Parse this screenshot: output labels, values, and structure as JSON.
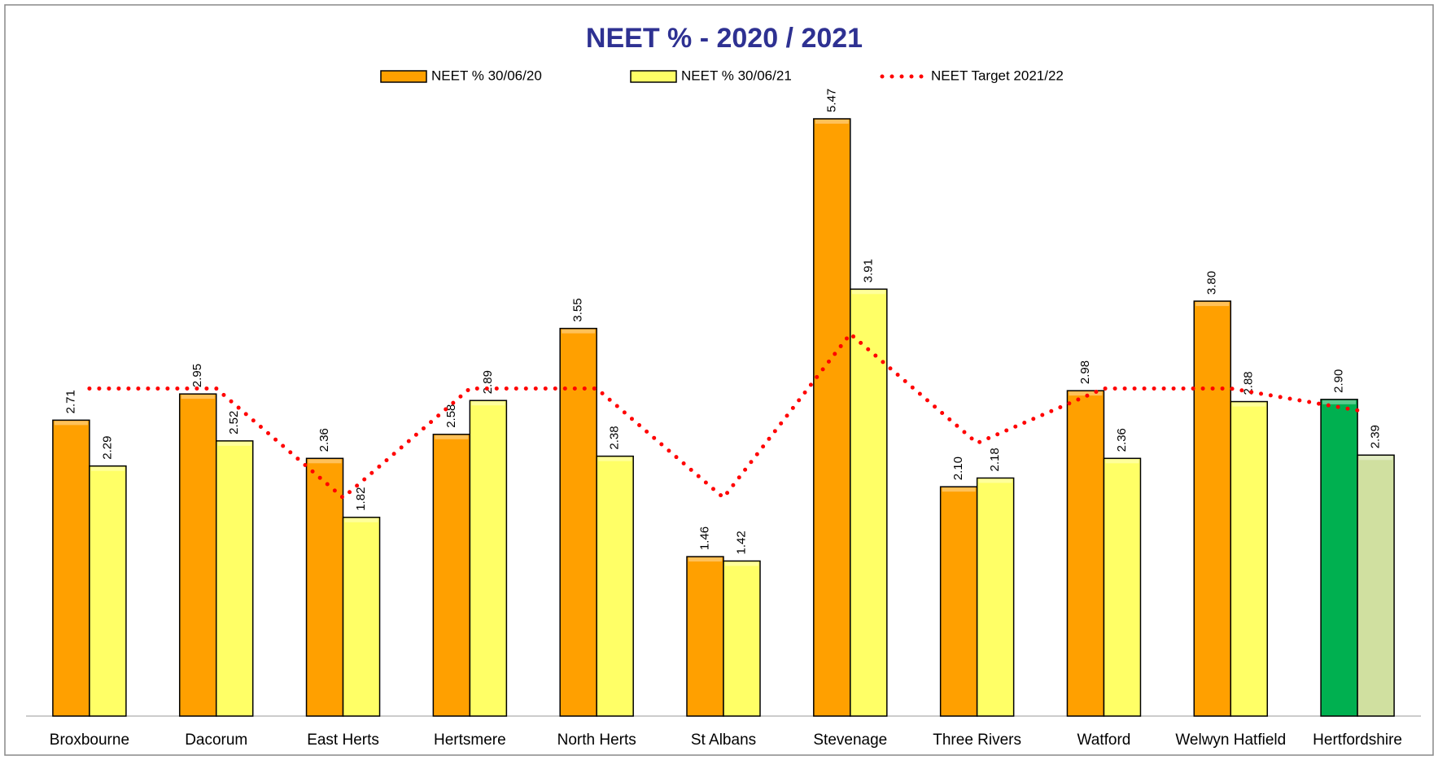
{
  "chart_data": {
    "type": "bar",
    "title": "NEET % - 2020 / 2021",
    "categories": [
      "Broxbourne",
      "Dacorum",
      "East Herts",
      "Hertsmere",
      "North Herts",
      "St Albans",
      "Stevenage",
      "Three Rivers",
      "Watford",
      "Welwyn Hatfield",
      "Hertfordshire"
    ],
    "series": [
      {
        "name": "NEET % 30/06/20",
        "color": "#ffa000",
        "colors": [
          "#ffa000",
          "#ffa000",
          "#ffa000",
          "#ffa000",
          "#ffa000",
          "#ffa000",
          "#ffa000",
          "#ffa000",
          "#ffa000",
          "#ffa000",
          "#00b050"
        ],
        "values": [
          2.71,
          2.95,
          2.36,
          2.58,
          3.55,
          1.46,
          5.47,
          2.1,
          2.98,
          3.8,
          2.9
        ],
        "value_labels": [
          "2.71",
          "2.95",
          "2.36",
          "2.58",
          "3.55",
          "1.46",
          "5.47",
          "2.10",
          "2.98",
          "3.80",
          "2.90"
        ]
      },
      {
        "name": "NEET % 30/06/21",
        "color": "#ffff66",
        "colors": [
          "#ffff66",
          "#ffff66",
          "#ffff66",
          "#ffff66",
          "#ffff66",
          "#ffff66",
          "#ffff66",
          "#ffff66",
          "#ffff66",
          "#ffff66",
          "#d0e0a0"
        ],
        "values": [
          2.29,
          2.52,
          1.82,
          2.89,
          2.38,
          1.42,
          3.91,
          2.18,
          2.36,
          2.88,
          2.39
        ],
        "value_labels": [
          "2.29",
          "2.52",
          "1.82",
          "2.89",
          "2.38",
          "1.42",
          "3.91",
          "2.18",
          "2.36",
          "2.88",
          "2.39"
        ]
      },
      {
        "name": "NEET Target 2021/22",
        "type": "line",
        "color": "#ff0000",
        "values": [
          3.0,
          3.0,
          2.0,
          3.0,
          3.0,
          2.0,
          3.5,
          2.5,
          3.0,
          3.0,
          2.8
        ]
      }
    ]
  }
}
